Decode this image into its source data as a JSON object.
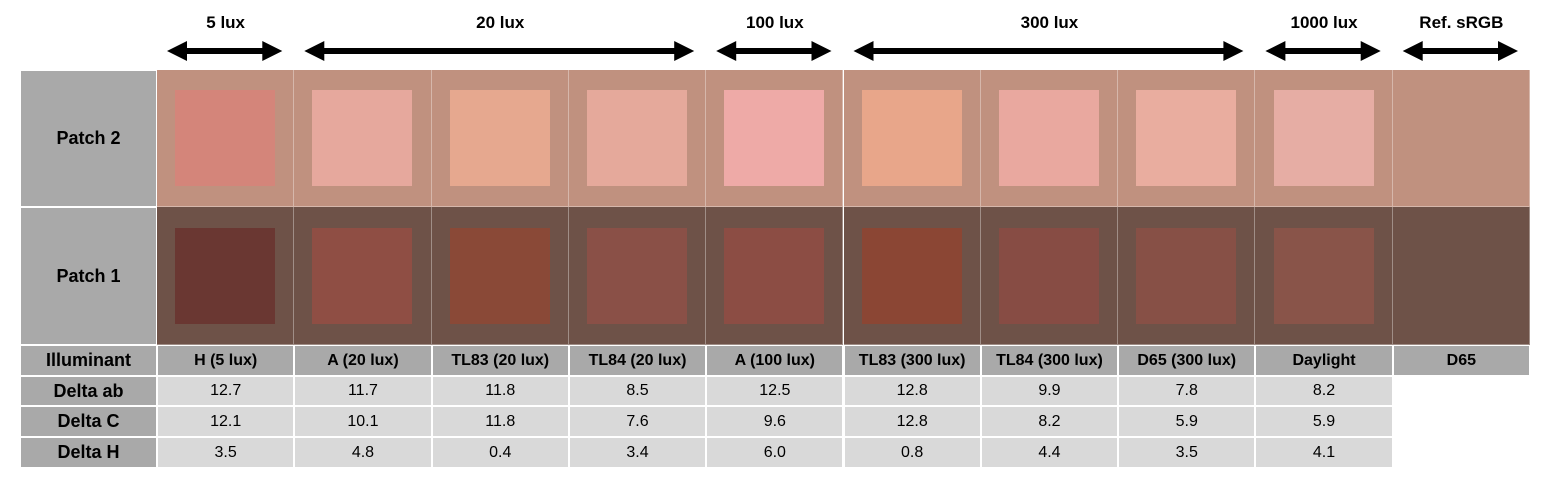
{
  "group_headers": [
    "5 lux",
    "20 lux",
    "100 lux",
    "300 lux",
    "1000 lux",
    "Ref. sRGB"
  ],
  "row_labels": {
    "patch2": "Patch 2",
    "patch1": "Patch 1",
    "illuminant": "Illuminant",
    "delta_ab": "Delta ab",
    "delta_c": "Delta C",
    "delta_h": "Delta H"
  },
  "patch_background": {
    "patch2": "#c0917f",
    "patch1": "#6e5248"
  },
  "columns": [
    {
      "illuminant": "H (5 lux)",
      "patch2_color": "#d4857a",
      "patch1_color": "#6a3732",
      "delta_ab": "12.7",
      "delta_c": "12.1",
      "delta_h": "3.5"
    },
    {
      "illuminant": "A (20 lux)",
      "patch2_color": "#e6a89d",
      "patch1_color": "#8f4e44",
      "delta_ab": "11.7",
      "delta_c": "10.1",
      "delta_h": "4.8"
    },
    {
      "illuminant": "TL83 (20 lux)",
      "patch2_color": "#e6a88f",
      "patch1_color": "#8a4937",
      "delta_ab": "11.8",
      "delta_c": "11.8",
      "delta_h": "0.4"
    },
    {
      "illuminant": "TL84 (20 lux)",
      "patch2_color": "#e5a99b",
      "patch1_color": "#8a5047",
      "delta_ab": "8.5",
      "delta_c": "7.6",
      "delta_h": "3.4"
    },
    {
      "illuminant": "A (100 lux)",
      "patch2_color": "#eeaaa7",
      "patch1_color": "#8c4d44",
      "delta_ab": "12.5",
      "delta_c": "9.6",
      "delta_h": "6.0"
    },
    {
      "illuminant": "TL83 (300 lux)",
      "patch2_color": "#e8a68a",
      "patch1_color": "#8b4634",
      "delta_ab": "12.8",
      "delta_c": "12.8",
      "delta_h": "0.8"
    },
    {
      "illuminant": "TL84 (300 lux)",
      "patch2_color": "#e9a89f",
      "patch1_color": "#874c44",
      "delta_ab": "9.9",
      "delta_c": "8.2",
      "delta_h": "4.4"
    },
    {
      "illuminant": "D65 (300 lux)",
      "patch2_color": "#e9ad9f",
      "patch1_color": "#875046",
      "delta_ab": "7.8",
      "delta_c": "5.9",
      "delta_h": "3.5"
    },
    {
      "illuminant": "Daylight",
      "patch2_color": "#e6ada4",
      "patch1_color": "#895449",
      "delta_ab": "8.2",
      "delta_c": "5.9",
      "delta_h": "4.1"
    },
    {
      "illuminant": "D65"
    }
  ]
}
